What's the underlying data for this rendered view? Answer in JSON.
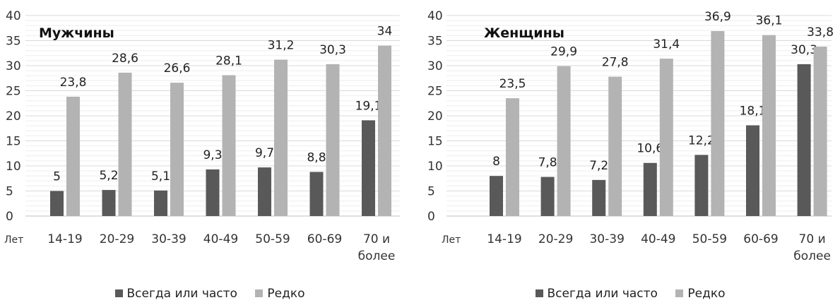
{
  "chart_data": [
    {
      "type": "bar",
      "title": "Мужчины",
      "xlabel": "Лет",
      "categories": [
        [
          "14-19"
        ],
        [
          "20-29"
        ],
        [
          "30-39"
        ],
        [
          "40-49"
        ],
        [
          "50-59"
        ],
        [
          "60-69"
        ],
        [
          "70 и",
          "более"
        ]
      ],
      "ylim": [
        0,
        40
      ],
      "yticks": [
        0,
        5,
        10,
        15,
        20,
        25,
        30,
        35,
        40
      ],
      "yticklabels": [
        "0",
        "5",
        "10",
        "15",
        "20",
        "25",
        "30",
        "35",
        "40"
      ],
      "grid": "horizontal",
      "legend_position": "bottom",
      "series": [
        {
          "name": "Всегда или часто",
          "color": "#595959",
          "values": [
            5,
            5.2,
            5.1,
            9.3,
            9.7,
            8.8,
            19.1
          ],
          "labels": [
            "5",
            "5,2",
            "5,1",
            "9,3",
            "9,7",
            "8,8",
            "19,1"
          ]
        },
        {
          "name": "Редко",
          "color": "#b3b3b3",
          "values": [
            23.8,
            28.6,
            26.6,
            28.1,
            31.2,
            30.3,
            34
          ],
          "labels": [
            "23,8",
            "28,6",
            "26,6",
            "28,1",
            "31,2",
            "30,3",
            "34"
          ]
        }
      ]
    },
    {
      "type": "bar",
      "title": "Женщины",
      "xlabel": "Лет",
      "categories": [
        [
          "14-19"
        ],
        [
          "20-29"
        ],
        [
          "30-39"
        ],
        [
          "40-49"
        ],
        [
          "50-59"
        ],
        [
          "60-69"
        ],
        [
          "70 и",
          "более"
        ]
      ],
      "ylim": [
        0,
        40
      ],
      "yticks": [
        0,
        5,
        10,
        15,
        20,
        25,
        30,
        35,
        40
      ],
      "yticklabels": [
        "0",
        "5",
        "10",
        "15",
        "20",
        "25",
        "30",
        "35",
        "40"
      ],
      "grid": "horizontal",
      "legend_position": "bottom",
      "series": [
        {
          "name": "Всегда или часто",
          "color": "#595959",
          "values": [
            8,
            7.8,
            7.2,
            10.6,
            12.2,
            18.1,
            30.3
          ],
          "labels": [
            "8",
            "7,8",
            "7,2",
            "10,6",
            "12,2",
            "18,1",
            "30,3"
          ]
        },
        {
          "name": "Редко",
          "color": "#b3b3b3",
          "values": [
            23.5,
            29.9,
            27.8,
            31.4,
            36.9,
            36.1,
            33.8
          ],
          "labels": [
            "23,5",
            "29,9",
            "27,8",
            "31,4",
            "36,9",
            "36,1",
            "33,8"
          ]
        }
      ]
    }
  ]
}
